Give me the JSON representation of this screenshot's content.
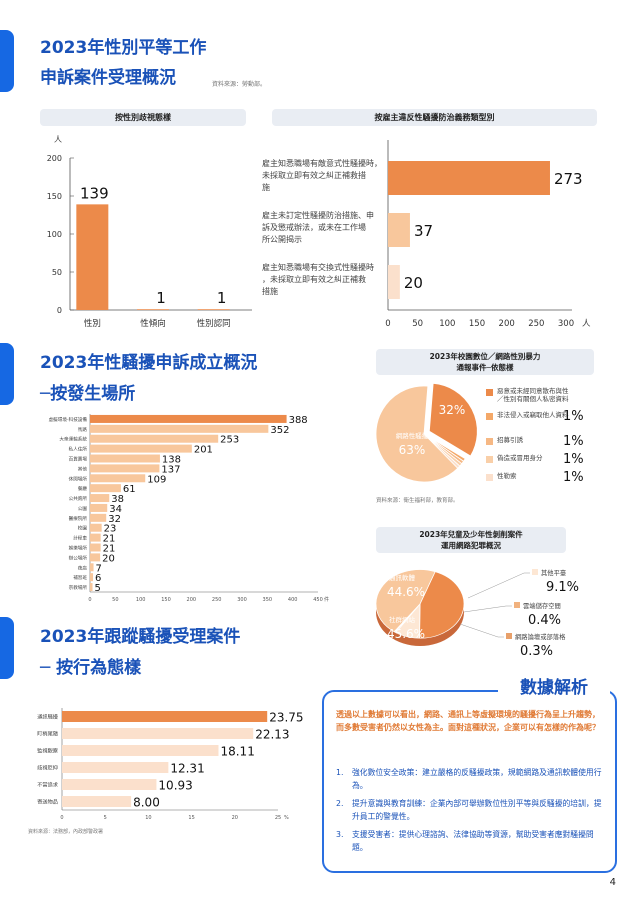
{
  "section1": {
    "title_line1": "2023年性別平等工作",
    "title_line2": "申訴案件受理概況",
    "source": "資料來源：勞動部。",
    "chart1_title": "按性別歧視態樣",
    "chart2_title": "按雇主違反性騷擾防治義務類型別"
  },
  "section2": {
    "title_line1": "2023年性騷擾申訴成立概況",
    "title_line2": "─按發生場所",
    "pie_title_1": "2023年校園數位／網路性別暴力",
    "pie_title_2": "通報事件─依態樣",
    "pie_source": "資料來源：衛生福利部，教育部。",
    "pie2_title_1": "2023年兒童及少年性剝削案件",
    "pie2_title_2": "運用網路犯罪概況"
  },
  "section3": {
    "title_line1": "2023年跟蹤騷擾受理案件",
    "title_line2": "─ 按行為態樣",
    "source": "資料來源：法務部，內政部警政署"
  },
  "analysis": {
    "title": "數據解析",
    "intro": "透過以上數據可以看出，網路、通訊上等虛擬環境的騷擾行為呈上升趨勢，而多數受害者仍然以女性為主。面對這種狀況，企業可以有怎樣的作為呢？",
    "items": [
      {
        "num": "1.",
        "text": "強化數位安全政策：建立嚴格的反騷擾政策，規範網路及通訊軟體使用行為。"
      },
      {
        "num": "2.",
        "text": "提升意識與教育訓練：企業內部可舉辦數位性別平等與反騷擾的培訓，提升員工的警覺性。"
      },
      {
        "num": "3.",
        "text": "支援受害者：提供心理諮詢、法律協助等資源，幫助受害者應對騷擾問題。"
      }
    ]
  },
  "page_number": "4",
  "colors": {
    "accent": "#1668e3",
    "orange": "#ec8a4a",
    "peach": "#f8c79c",
    "pale": "#fbe0cc",
    "title_blue": "#1a52b8"
  },
  "chart_data": [
    {
      "type": "bar",
      "title": "按性別歧視態樣",
      "ylabel": "人",
      "categories": [
        "性別",
        "性傾向",
        "性別認同"
      ],
      "values": [
        139,
        1,
        1
      ],
      "ylim": [
        0,
        200
      ],
      "yticks": [
        0,
        50,
        100,
        150,
        200
      ]
    },
    {
      "type": "bar",
      "orientation": "horizontal",
      "title": "按雇主違反性騷擾防治義務類型別",
      "xlabel": "人",
      "categories": [
        "雇主知悉職場有敵意式性騷擾時，未採取立即有效之糾正補救措施",
        "雇主未訂定性騷擾防治措施、申訴及懲戒辦法，或未在工作場所公開揭示",
        "雇主知悉職場有交換式性騷擾時，未採取立即有效之糾正補救措施"
      ],
      "values": [
        273,
        37,
        20
      ],
      "xlim": [
        0,
        300
      ],
      "xticks": [
        0,
        50,
        100,
        150,
        200,
        250,
        300
      ]
    },
    {
      "type": "bar",
      "orientation": "horizontal",
      "categories": [
        "虛擬環境-科技設備",
        "馬路",
        "大衆運輸系統",
        "私人住所",
        "百貨賣場",
        "其他",
        "休閒場所",
        "餐廳",
        "公共廁所",
        "公園",
        "醫療院所",
        "校園",
        "計程車",
        "娛樂場所",
        "辦公場所",
        "夜店",
        "補習班",
        "宗教場所"
      ],
      "values": [
        388,
        352,
        253,
        201,
        138,
        137,
        109,
        61,
        38,
        34,
        32,
        23,
        21,
        21,
        20,
        7,
        6,
        5
      ],
      "xlim": [
        0,
        450
      ],
      "xticks": [
        0,
        50,
        100,
        150,
        200,
        250,
        300,
        350,
        400,
        450
      ],
      "xlabel": "件"
    },
    {
      "type": "pie",
      "slices": [
        {
          "label": "網路性騷擾",
          "value": 63,
          "display": "63%"
        },
        {
          "label": "惡意或未經同意散布與性／性別有關個人私密資料",
          "value": 32,
          "display": "32%"
        },
        {
          "label": "非法侵入或竊取他人資料",
          "value": 1,
          "display": "1%"
        },
        {
          "label": "招募引誘",
          "value": 1,
          "display": "1%"
        },
        {
          "label": "偽造或冒用身分",
          "value": 1,
          "display": "1%"
        },
        {
          "label": "性勒索",
          "value": 1,
          "display": "1%"
        }
      ]
    },
    {
      "type": "pie",
      "slices": [
        {
          "label": "通訊軟體",
          "value": 44.6,
          "display": "44.6%"
        },
        {
          "label": "社群網站",
          "value": 45.6,
          "display": "45.6%"
        },
        {
          "label": "其他平臺",
          "value": 9.1,
          "display": "9.1%"
        },
        {
          "label": "雲端儲存空間",
          "value": 0.4,
          "display": "0.4%"
        },
        {
          "label": "網路論壇或部落格",
          "value": 0.3,
          "display": "0.3%"
        }
      ]
    },
    {
      "type": "bar",
      "orientation": "horizontal",
      "categories": [
        "通訊騷擾",
        "盯梢尾隨",
        "監視觀察",
        "歧視貶抑",
        "不當追求",
        "寄送物品"
      ],
      "values": [
        23.75,
        22.13,
        18.11,
        12.31,
        10.93,
        8.0
      ],
      "labels": [
        "23.75",
        "22.13",
        "18.11",
        "12.31",
        "10.93",
        "8.00"
      ],
      "xlim": [
        0,
        25
      ],
      "xticks": [
        0,
        5,
        10,
        15,
        20,
        25
      ],
      "xlabel": "%"
    }
  ]
}
